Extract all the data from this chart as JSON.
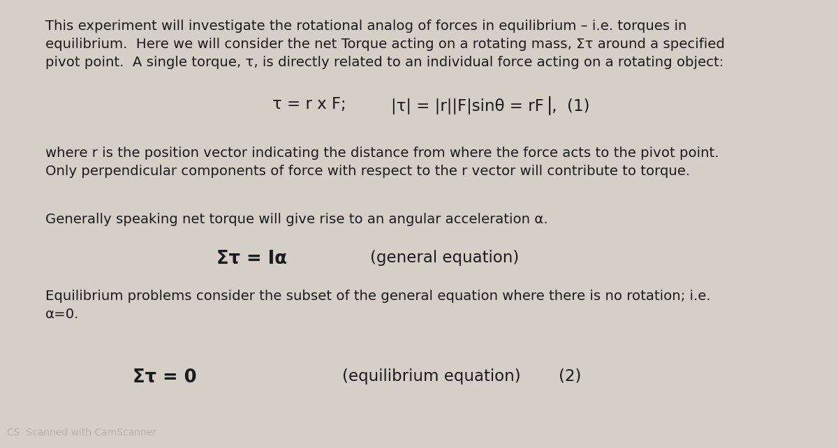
{
  "bg_color": "#d4d0c8",
  "text_color": "#1a1a1a",
  "figsize": [
    12.0,
    6.42
  ],
  "dpi": 100,
  "paragraph1_line1": "This experiment will investigate the rotational analog of forces in equilibrium – i.e. torques in",
  "paragraph1_line2": "equilibrium.  Here we will consider the net Torque acting on a rotating mass, Στ around a specified",
  "paragraph1_line3": "pivot point.  A single torque, τ, is directly related to an individual force acting on a rotating object:",
  "equation1_left": "τ = r x F;",
  "equation1_right": "|τ| = |r||F|sinθ = rF⎥,  (1)",
  "paragraph2_line1": "where r is the position vector indicating the distance from where the force acts to the pivot point.",
  "paragraph2_line2": "Only perpendicular components of force with respect to the r vector will contribute to torque.",
  "paragraph3": "Generally speaking net torque will give rise to an angular acceleration α.",
  "equation2_left": "Στ = Iα",
  "equation2_right": "(general equation)",
  "paragraph4_line1": "Equilibrium problems consider the subset of the general equation where there is no rotation; i.e.",
  "paragraph4_line2": "α=0.",
  "equation3_left": "Στ = 0",
  "equation3_mid": "(equilibrium equation)",
  "equation3_right": "(2)",
  "watermark": "CS  Scanned with CamScanner"
}
